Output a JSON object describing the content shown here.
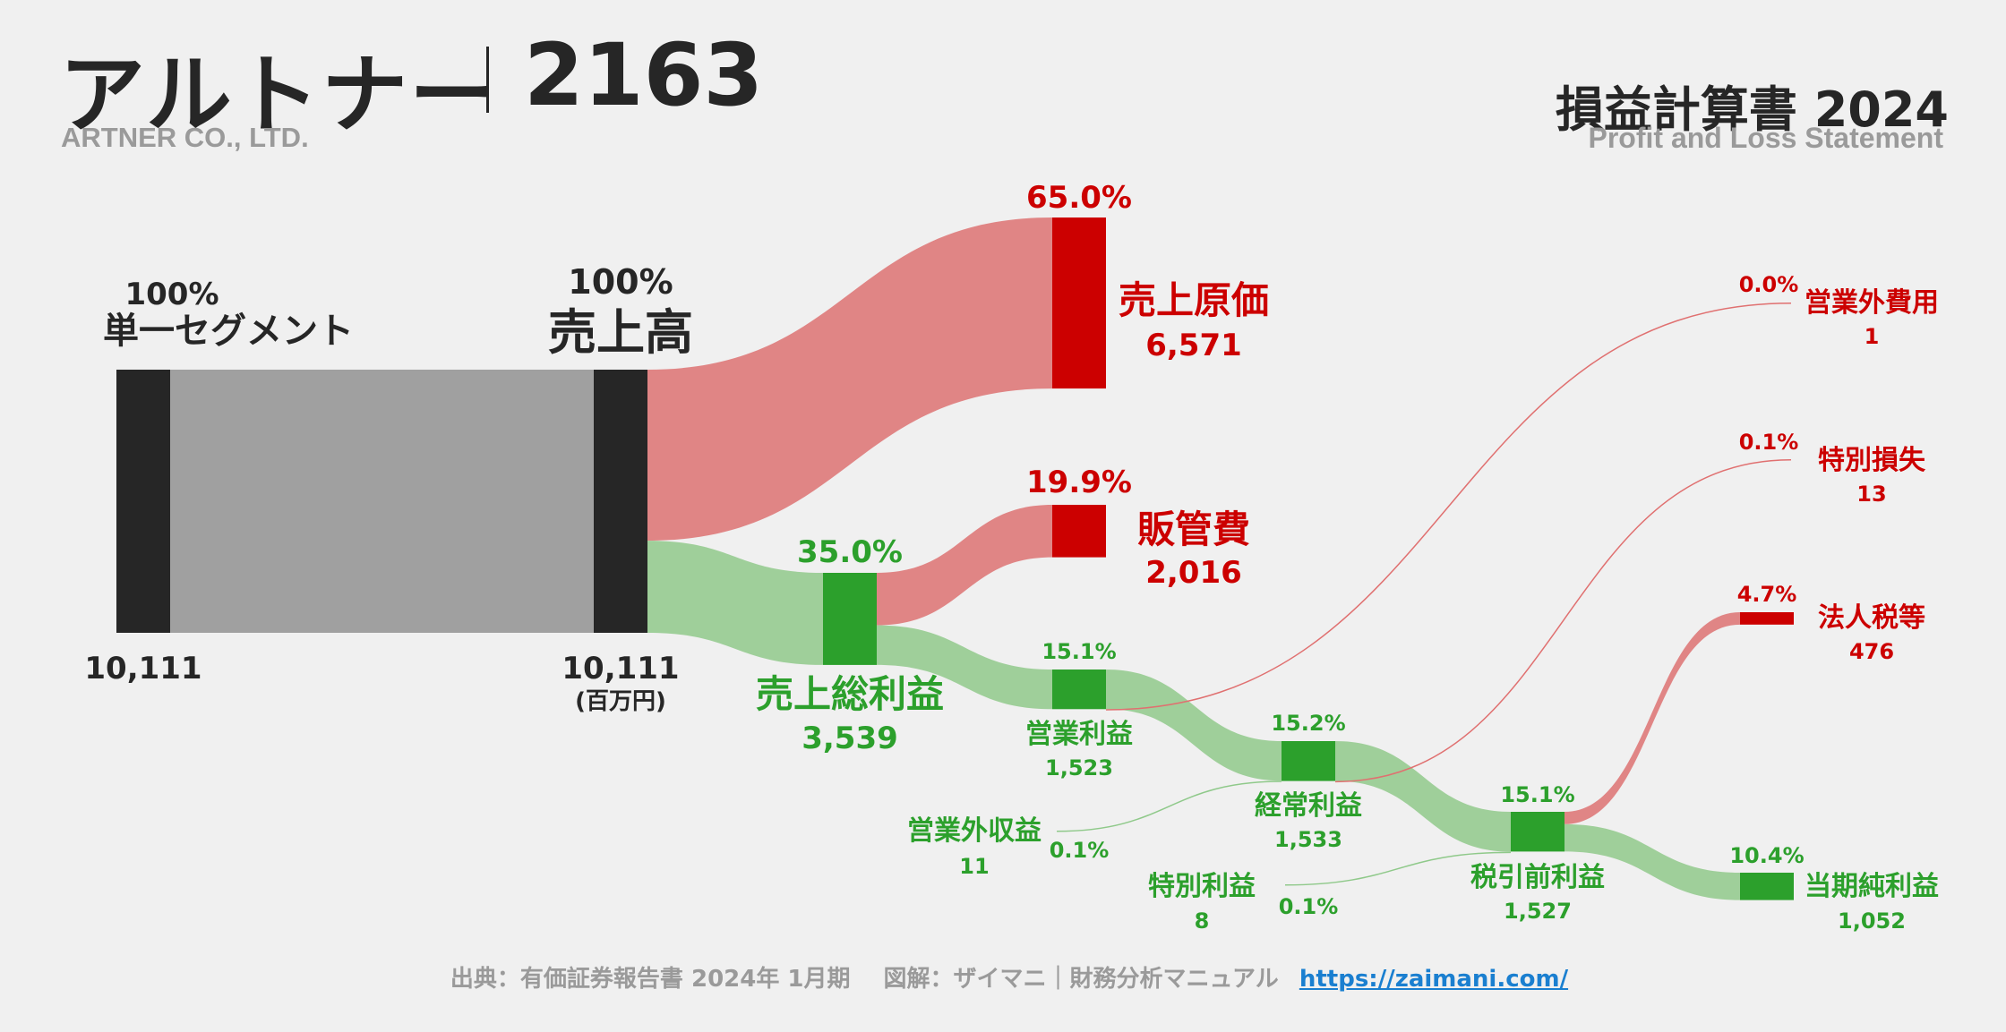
{
  "header": {
    "company": "アルトナー",
    "code": "2163",
    "company_en": "ARTNER CO., LTD.",
    "statement_title": "損益計算書 2024",
    "statement_sub": "Profit and Loss Statement"
  },
  "footer": {
    "source": "出典：有価証券報告書 2024年 1月期",
    "credit": "図解：ザイマニ｜財務分析マニュアル",
    "url": "https://zaimani.com/"
  },
  "colors": {
    "red": "#cc0000",
    "green": "#2ca02c",
    "dark": "#262626",
    "gray_flow": "#a0a0a0",
    "red_flow": "#e08585",
    "green_flow": "#9fcf9a"
  },
  "chart_data": {
    "type": "sankey",
    "unit": "(百万円)",
    "nodes": [
      {
        "id": "segment",
        "label": "単一セグメント",
        "value": 10111,
        "value_label": "10,111",
        "pct": "100%",
        "color": "dark"
      },
      {
        "id": "revenue",
        "label": "売上高",
        "value": 10111,
        "value_label": "10,111",
        "pct": "100%",
        "color": "dark"
      },
      {
        "id": "cogs",
        "label": "売上原価",
        "value": 6571,
        "value_label": "6,571",
        "pct": "65.0%",
        "color": "red"
      },
      {
        "id": "gross",
        "label": "売上総利益",
        "value": 3539,
        "value_label": "3,539",
        "pct": "35.0%",
        "color": "green"
      },
      {
        "id": "sga",
        "label": "販管費",
        "value": 2016,
        "value_label": "2,016",
        "pct": "19.9%",
        "color": "red"
      },
      {
        "id": "op",
        "label": "営業利益",
        "value": 1523,
        "value_label": "1,523",
        "pct": "15.1%",
        "color": "green"
      },
      {
        "id": "nonop_inc",
        "label": "営業外収益",
        "value": 11,
        "value_label": "11",
        "pct": "0.1%",
        "color": "green"
      },
      {
        "id": "nonop_exp",
        "label": "営業外費用",
        "value": 1,
        "value_label": "1",
        "pct": "0.0%",
        "color": "red"
      },
      {
        "id": "ordinary",
        "label": "経常利益",
        "value": 1533,
        "value_label": "1,533",
        "pct": "15.2%",
        "color": "green"
      },
      {
        "id": "ext_gain",
        "label": "特別利益",
        "value": 8,
        "value_label": "8",
        "pct": "0.1%",
        "color": "green"
      },
      {
        "id": "ext_loss",
        "label": "特別損失",
        "value": 13,
        "value_label": "13",
        "pct": "0.1%",
        "color": "red"
      },
      {
        "id": "pretax",
        "label": "税引前利益",
        "value": 1527,
        "value_label": "1,527",
        "pct": "15.1%",
        "color": "green"
      },
      {
        "id": "tax",
        "label": "法人税等",
        "value": 476,
        "value_label": "476",
        "pct": "4.7%",
        "color": "red"
      },
      {
        "id": "net",
        "label": "当期純利益",
        "value": 1052,
        "value_label": "1,052",
        "pct": "10.4%",
        "color": "green"
      }
    ],
    "links": [
      {
        "source": "segment",
        "target": "revenue",
        "value": 10111
      },
      {
        "source": "revenue",
        "target": "cogs",
        "value": 6571
      },
      {
        "source": "revenue",
        "target": "gross",
        "value": 3539
      },
      {
        "source": "gross",
        "target": "sga",
        "value": 2016
      },
      {
        "source": "gross",
        "target": "op",
        "value": 1523
      },
      {
        "source": "op",
        "target": "ordinary",
        "value": 1523
      },
      {
        "source": "op",
        "target": "nonop_exp",
        "value": 1
      },
      {
        "source": "nonop_inc",
        "target": "ordinary",
        "value": 11
      },
      {
        "source": "ordinary",
        "target": "pretax",
        "value": 1533
      },
      {
        "source": "ordinary",
        "target": "ext_loss",
        "value": 13
      },
      {
        "source": "ext_gain",
        "target": "pretax",
        "value": 8
      },
      {
        "source": "pretax",
        "target": "tax",
        "value": 476
      },
      {
        "source": "pretax",
        "target": "net",
        "value": 1052
      }
    ]
  }
}
